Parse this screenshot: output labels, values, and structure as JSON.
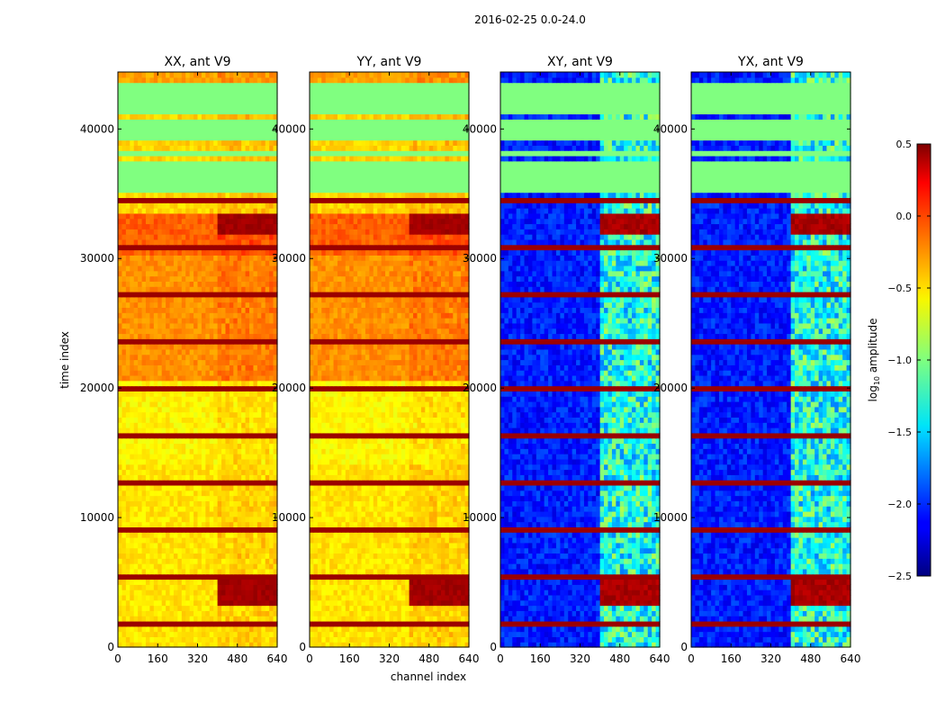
{
  "figure_title": "2016-02-25 0.0-24.0",
  "chart_data": {
    "type": "heatmap",
    "title": "2016-02-25 0.0-24.0",
    "xlabel": "channel index",
    "ylabel": "time index",
    "x_ticks": [
      0,
      160,
      320,
      480,
      640
    ],
    "y_ticks": [
      0,
      10000,
      20000,
      30000,
      40000
    ],
    "xlim": [
      0,
      640
    ],
    "ylim": [
      0,
      44400
    ],
    "panels": [
      {
        "name": "XX",
        "title": "XX, ant V9",
        "kind": "auto"
      },
      {
        "name": "YY",
        "title": "YY, ant V9",
        "kind": "auto"
      },
      {
        "name": "XY",
        "title": "XY, ant V9",
        "kind": "cross"
      },
      {
        "name": "YX",
        "title": "YX, ant V9",
        "kind": "cross"
      }
    ],
    "colorbar": {
      "label_main": "log",
      "label_sub": "10",
      "label_rest": " amplitude",
      "range": [
        -2.5,
        0.5
      ],
      "ticks": [
        "0.5",
        "0.0",
        "−0.5",
        "−1.0",
        "−1.5",
        "−2.0",
        "−2.5"
      ],
      "colormap": "jet"
    },
    "masked_time_ranges": [
      [
        34800,
        37400
      ],
      [
        37600,
        38100
      ],
      [
        38400,
        38700
      ],
      [
        39000,
        40600
      ],
      [
        40800,
        43200
      ]
    ],
    "flag_value": -1.0,
    "auto_level_ranges": [
      {
        "t0": 0,
        "t1": 14000,
        "value": -0.55
      },
      {
        "t0": 14000,
        "t1": 20500,
        "value": -0.6
      },
      {
        "t0": 20500,
        "t1": 30000,
        "value": -0.3
      },
      {
        "t0": 30000,
        "t1": 33500,
        "value": -0.15
      },
      {
        "t0": 43200,
        "t1": 44400,
        "value": -0.35
      }
    ],
    "bright_time_ranges": [
      [
        3000,
        5200
      ],
      [
        31800,
        33400
      ]
    ],
    "rfi_channel_range": [
      400,
      640
    ]
  }
}
